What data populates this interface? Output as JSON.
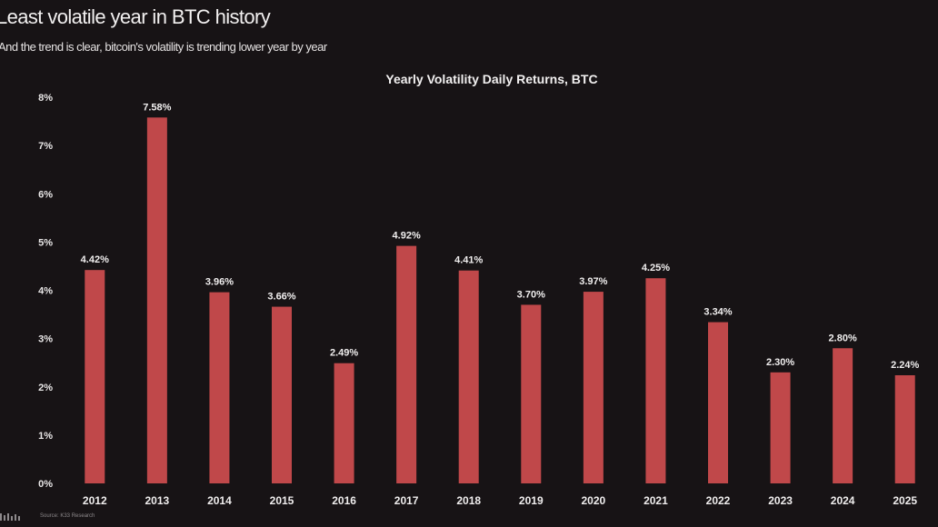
{
  "header": {
    "title": "Least volatile year in BTC history",
    "subtitle": "And the trend is clear, bitcoin's volatility is trending lower year by year"
  },
  "footer": {
    "source": "Source: K33 Research"
  },
  "colors": {
    "background": "#171315",
    "bar": "#c0484a",
    "text": "#f0eeee"
  },
  "chart_data": {
    "type": "bar",
    "title": "Yearly Volatility Daily Returns, BTC",
    "xlabel": "",
    "ylabel": "",
    "categories": [
      "2012",
      "2013",
      "2014",
      "2015",
      "2016",
      "2017",
      "2018",
      "2019",
      "2020",
      "2021",
      "2022",
      "2023",
      "2024",
      "2025"
    ],
    "values": [
      4.42,
      7.58,
      3.96,
      3.66,
      2.49,
      4.92,
      4.41,
      3.7,
      3.97,
      4.25,
      3.34,
      2.3,
      2.8,
      2.24
    ],
    "data_labels": [
      "4.42%",
      "7.58%",
      "3.96%",
      "3.66%",
      "2.49%",
      "4.92%",
      "4.41%",
      "3.70%",
      "3.97%",
      "4.25%",
      "3.34%",
      "2.30%",
      "2.80%",
      "2.24%"
    ],
    "ylim": [
      0,
      8
    ],
    "yticks": [
      0,
      1,
      2,
      3,
      4,
      5,
      6,
      7,
      8
    ],
    "ytick_labels": [
      "0%",
      "1%",
      "2%",
      "3%",
      "4%",
      "5%",
      "6%",
      "7%",
      "8%"
    ],
    "grid": false,
    "legend": "none"
  }
}
